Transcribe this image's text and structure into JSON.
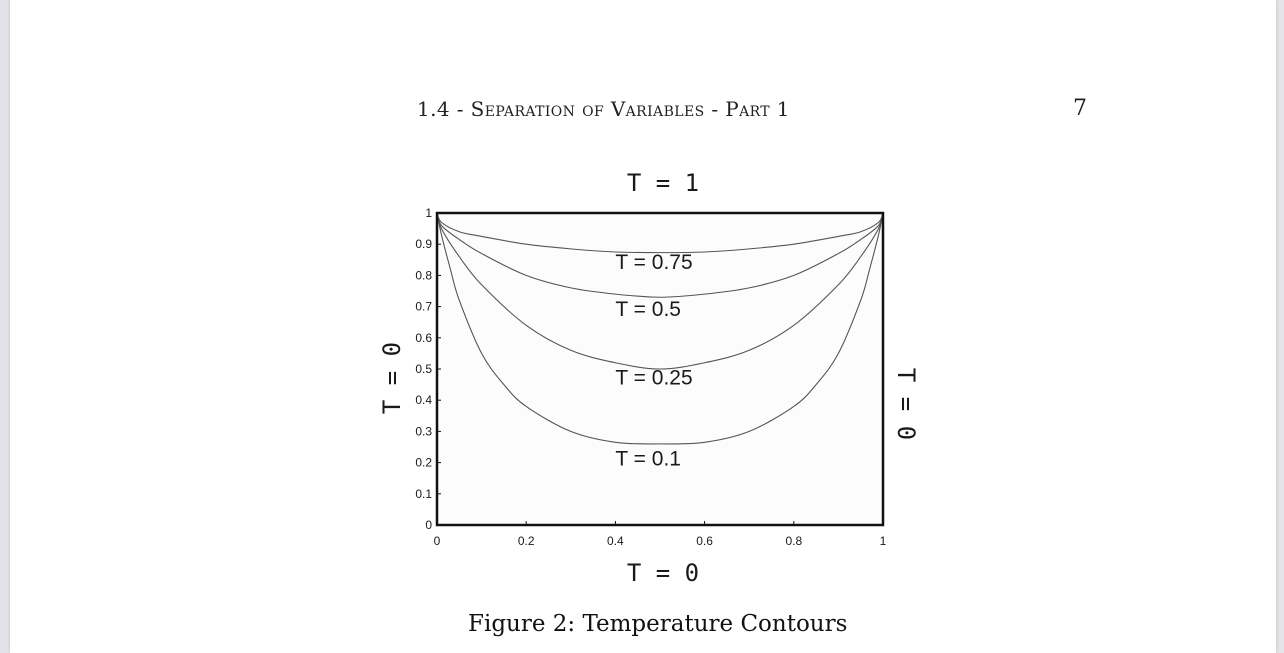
{
  "header": {
    "running_head": "1.4 - Separation of Variables - Part 1",
    "page_number": "7"
  },
  "figure": {
    "caption": "Figure 2: Temperature Contours"
  },
  "chart_data": {
    "type": "line",
    "boundary_labels": {
      "top": "T = 1",
      "bottom": "T = 0",
      "left": "T = 0",
      "right": "T = 0"
    },
    "xlim": [
      0,
      1
    ],
    "ylim": [
      0,
      1
    ],
    "x_ticks": [
      "0",
      "0.2",
      "0.4",
      "0.6",
      "0.8",
      "1"
    ],
    "y_ticks": [
      "0",
      "0.1",
      "0.2",
      "0.3",
      "0.4",
      "0.5",
      "0.6",
      "0.7",
      "0.8",
      "0.9",
      "1"
    ],
    "grid": false,
    "contours": [
      {
        "label": "T = 0.75",
        "label_xy": [
          0.4,
          0.82
        ],
        "points": [
          [
            0,
            1
          ],
          [
            0.01,
            0.97
          ],
          [
            0.05,
            0.94
          ],
          [
            0.1,
            0.925
          ],
          [
            0.2,
            0.9
          ],
          [
            0.3,
            0.885
          ],
          [
            0.4,
            0.875
          ],
          [
            0.5,
            0.873
          ],
          [
            0.6,
            0.875
          ],
          [
            0.7,
            0.885
          ],
          [
            0.8,
            0.9
          ],
          [
            0.9,
            0.925
          ],
          [
            0.95,
            0.94
          ],
          [
            0.99,
            0.97
          ],
          [
            1,
            1
          ]
        ]
      },
      {
        "label": "T = 0.5",
        "label_xy": [
          0.4,
          0.67
        ],
        "points": [
          [
            0,
            1
          ],
          [
            0.01,
            0.96
          ],
          [
            0.05,
            0.915
          ],
          [
            0.1,
            0.87
          ],
          [
            0.2,
            0.8
          ],
          [
            0.3,
            0.76
          ],
          [
            0.4,
            0.74
          ],
          [
            0.5,
            0.73
          ],
          [
            0.6,
            0.74
          ],
          [
            0.7,
            0.76
          ],
          [
            0.8,
            0.8
          ],
          [
            0.9,
            0.87
          ],
          [
            0.95,
            0.915
          ],
          [
            0.99,
            0.96
          ],
          [
            1,
            1
          ]
        ]
      },
      {
        "label": "T = 0.25",
        "label_xy": [
          0.4,
          0.45
        ],
        "points": [
          [
            0,
            1
          ],
          [
            0.01,
            0.95
          ],
          [
            0.05,
            0.86
          ],
          [
            0.1,
            0.77
          ],
          [
            0.2,
            0.64
          ],
          [
            0.3,
            0.56
          ],
          [
            0.4,
            0.52
          ],
          [
            0.5,
            0.5
          ],
          [
            0.6,
            0.52
          ],
          [
            0.7,
            0.56
          ],
          [
            0.8,
            0.64
          ],
          [
            0.9,
            0.77
          ],
          [
            0.95,
            0.86
          ],
          [
            0.99,
            0.95
          ],
          [
            1,
            1
          ]
        ]
      },
      {
        "label": "T = 0.1",
        "label_xy": [
          0.4,
          0.19
        ],
        "points": [
          [
            0,
            1
          ],
          [
            0.01,
            0.93
          ],
          [
            0.03,
            0.82
          ],
          [
            0.05,
            0.72
          ],
          [
            0.1,
            0.55
          ],
          [
            0.15,
            0.45
          ],
          [
            0.2,
            0.38
          ],
          [
            0.3,
            0.3
          ],
          [
            0.4,
            0.265
          ],
          [
            0.5,
            0.26
          ],
          [
            0.6,
            0.265
          ],
          [
            0.7,
            0.3
          ],
          [
            0.8,
            0.38
          ],
          [
            0.85,
            0.45
          ],
          [
            0.9,
            0.55
          ],
          [
            0.95,
            0.72
          ],
          [
            0.97,
            0.82
          ],
          [
            0.99,
            0.93
          ],
          [
            1,
            1
          ]
        ]
      }
    ]
  }
}
